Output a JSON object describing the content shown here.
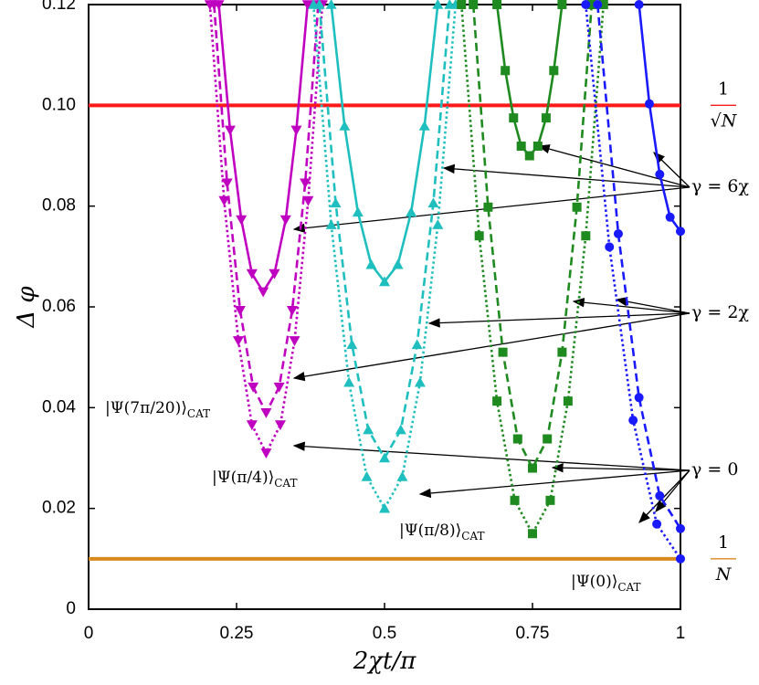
{
  "chart_data": {
    "type": "line",
    "x_label": "2χt/π",
    "y_label": "Δ φ",
    "xlim": [
      0,
      1
    ],
    "ylim": [
      0,
      0.12
    ],
    "xticks": [
      0,
      0.25,
      0.5,
      0.75,
      1
    ],
    "yticks": [
      0,
      0.02,
      0.04,
      0.06,
      0.08,
      {
        "value": 0.1,
        "label": "0.10"
      },
      0.12
    ],
    "grid": false,
    "hlines": [
      {
        "value": 0.1,
        "color": "#ff1a1a",
        "num": "1",
        "den": "√N"
      },
      {
        "value": 0.01,
        "color": "#d98a1c",
        "num": "1",
        "den": "N"
      }
    ],
    "series": [
      {
        "color": "#c000c0",
        "linestyle": "solid",
        "marker": "v",
        "x": [
          0.22,
          0.239,
          0.258,
          0.276,
          0.295,
          0.314,
          0.333,
          0.351,
          0.37
        ],
        "values": [
          0.12,
          0.0951,
          0.0773,
          0.0666,
          0.063,
          0.0666,
          0.0773,
          0.0951,
          0.12
        ]
      },
      {
        "color": "#c000c0",
        "linestyle": "dashed",
        "marker": "v",
        "x": [
          0.212,
          0.234,
          0.256,
          0.278,
          0.3,
          0.322,
          0.344,
          0.366,
          0.388
        ],
        "values": [
          0.12,
          0.0846,
          0.0593,
          0.0441,
          0.039,
          0.0441,
          0.0593,
          0.0846,
          0.12
        ]
      },
      {
        "color": "#c000c0",
        "linestyle": "dotted",
        "marker": "v",
        "x": [
          0.205,
          0.229,
          0.253,
          0.276,
          0.3,
          0.324,
          0.348,
          0.371,
          0.395
        ],
        "values": [
          0.12,
          0.0811,
          0.0533,
          0.0366,
          0.031,
          0.0366,
          0.0533,
          0.0811,
          0.12
        ]
      },
      {
        "color": "#1fbfbf",
        "linestyle": "solid",
        "marker": "^",
        "x": [
          0.41,
          0.4325,
          0.455,
          0.4775,
          0.5,
          0.5225,
          0.545,
          0.5675,
          0.59
        ],
        "values": [
          0.12,
          0.0959,
          0.0788,
          0.0684,
          0.065,
          0.0684,
          0.0788,
          0.0959,
          0.12
        ]
      },
      {
        "color": "#1fbfbf",
        "linestyle": "dashed",
        "marker": "^",
        "x": [
          0.39,
          0.4175,
          0.445,
          0.4725,
          0.5,
          0.5275,
          0.555,
          0.5825,
          0.61
        ],
        "values": [
          0.12,
          0.0806,
          0.0525,
          0.0356,
          0.03,
          0.0356,
          0.0525,
          0.0806,
          0.12
        ]
      },
      {
        "color": "#1fbfbf",
        "linestyle": "dotted",
        "marker": "^",
        "x": [
          0.38,
          0.41,
          0.44,
          0.47,
          0.5,
          0.53,
          0.56,
          0.59,
          0.62
        ],
        "values": [
          0.12,
          0.0763,
          0.045,
          0.0263,
          0.02,
          0.0263,
          0.045,
          0.0763,
          0.12
        ]
      },
      {
        "color": "#1f8a1f",
        "linestyle": "solid",
        "marker": "s",
        "x": [
          0.69,
          0.704,
          0.718,
          0.731,
          0.745,
          0.759,
          0.773,
          0.786,
          0.8
        ],
        "values": [
          0.12,
          0.1069,
          0.0975,
          0.0919,
          0.09,
          0.0919,
          0.0975,
          0.1069,
          0.12
        ]
      },
      {
        "color": "#1f8a1f",
        "linestyle": "dashed",
        "marker": "s",
        "x": [
          0.65,
          0.675,
          0.7,
          0.725,
          0.75,
          0.775,
          0.8,
          0.825,
          0.85
        ],
        "values": [
          0.12,
          0.0798,
          0.051,
          0.0338,
          0.028,
          0.0338,
          0.051,
          0.0798,
          0.12
        ]
      },
      {
        "color": "#1f8a1f",
        "linestyle": "dotted",
        "marker": "s",
        "x": [
          0.63,
          0.66,
          0.69,
          0.72,
          0.75,
          0.78,
          0.81,
          0.84,
          0.87
        ],
        "values": [
          0.12,
          0.0741,
          0.0413,
          0.0216,
          0.015,
          0.0216,
          0.0413,
          0.0741,
          0.12
        ]
      },
      {
        "color": "#1a1aff",
        "linestyle": "solid",
        "marker": "o",
        "x": [
          0.93,
          0.9475,
          0.965,
          0.9825,
          1
        ],
        "values": [
          0.12,
          0.1003,
          0.0863,
          0.0778,
          0.075
        ]
      },
      {
        "color": "#1a1aff",
        "linestyle": "dashed",
        "marker": "o",
        "x": [
          0.86,
          0.895,
          0.93,
          0.965,
          1
        ],
        "values": [
          0.12,
          0.0745,
          0.042,
          0.0225,
          0.016
        ]
      },
      {
        "color": "#1a1aff",
        "linestyle": "dotted",
        "marker": "o",
        "x": [
          0.84,
          0.88,
          0.92,
          0.96,
          1
        ],
        "values": [
          0.12,
          0.0719,
          0.0375,
          0.0169,
          0.01
        ]
      }
    ],
    "gamma_labels": [
      "γ = 6χ",
      "γ = 2χ",
      "γ = 0"
    ],
    "state_labels": [
      {
        "text": "|Ψ(7π/20)⟩",
        "sub": "CAT"
      },
      {
        "text": "|Ψ(π/4)⟩",
        "sub": "CAT"
      },
      {
        "text": "|Ψ(π/8)⟩",
        "sub": "CAT"
      },
      {
        "text": "|Ψ(0)⟩",
        "sub": "CAT"
      }
    ]
  }
}
